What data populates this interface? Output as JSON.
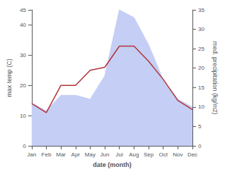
{
  "chart_data": {
    "type": "line",
    "xlabel": "date (month)",
    "ylabel": "max temp (C)",
    "y2label": "med. precipitation (kg/m2)",
    "categories": [
      "Jan",
      "Feb",
      "Mar",
      "Apr",
      "May",
      "Jun",
      "Jul",
      "Aug",
      "Sep",
      "Oct",
      "Nov",
      "Dec"
    ],
    "series": [
      {
        "type": "area",
        "axis": "y2",
        "color": "#c5cef5",
        "values": [
          11,
          9,
          13,
          13,
          12,
          18,
          35,
          33,
          26,
          17,
          12,
          10
        ]
      },
      {
        "type": "line",
        "color": "#b03535",
        "values": [
          14,
          11,
          20,
          20,
          25,
          26,
          33,
          33,
          28,
          22,
          15,
          12
        ]
      }
    ],
    "ylim": [
      0,
      45
    ],
    "yticks": [
      0,
      10,
      20,
      30,
      40
    ],
    "y2lim": [
      0,
      35
    ],
    "y2ticks": [
      0,
      5,
      10,
      15,
      20,
      25,
      30,
      35
    ],
    "grid": false
  }
}
